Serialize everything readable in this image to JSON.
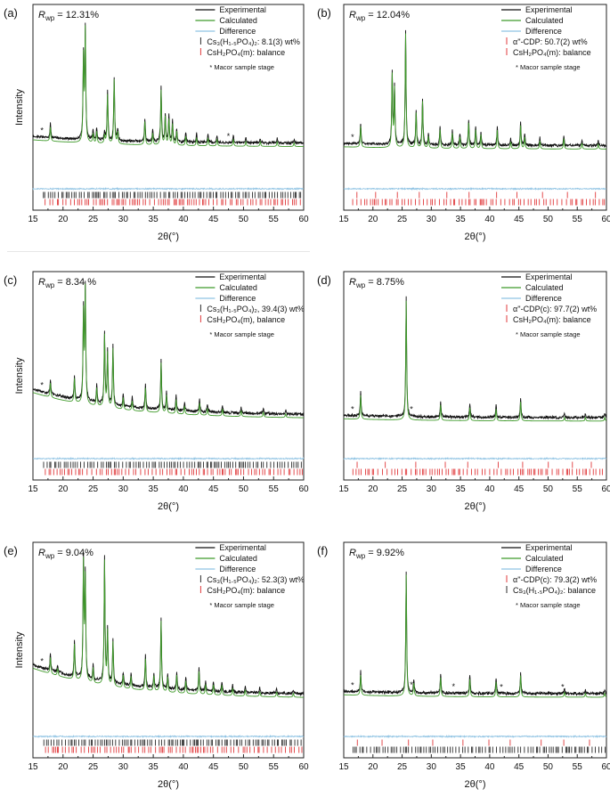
{
  "figure": {
    "description_panels": 6
  },
  "colors": {
    "experimental": "#111111",
    "calculated": "#3f9a2a",
    "difference": "#8fc3e3",
    "tick_black": "#2b2b2b",
    "tick_red": "#e0393b"
  },
  "chart_data": [
    {
      "panel": "(a)",
      "type": "line",
      "rwp_label": "R",
      "rwp_sub": "wp",
      "rwp_value": " = 12.31%",
      "xlabel": "2θ(°)",
      "ylabel": "Intensity",
      "xlim": [
        15,
        60
      ],
      "xticks": [
        15,
        20,
        25,
        30,
        35,
        40,
        45,
        50,
        55,
        60
      ],
      "legend": [
        "Experimental",
        "Calculated",
        "Difference"
      ],
      "phases": [
        {
          "label": "Cs₃(H₁.₅PO₄)₂: 8.1(3) wt%",
          "color": "black",
          "kind": "cs3"
        },
        {
          "label": "CsH₂PO₄(m): balance",
          "color": "red",
          "kind": "cdp"
        }
      ],
      "note": "* Macor sample stage",
      "macor_peaks": [
        16.5,
        47.5
      ],
      "peaks": [
        {
          "x": 17.9,
          "h": 0.12
        },
        {
          "x": 23.4,
          "h": 0.72
        },
        {
          "x": 23.7,
          "h": 0.95
        },
        {
          "x": 25.0,
          "h": 0.08
        },
        {
          "x": 25.6,
          "h": 0.1
        },
        {
          "x": 26.9,
          "h": 0.07
        },
        {
          "x": 27.4,
          "h": 0.42
        },
        {
          "x": 28.5,
          "h": 0.55
        },
        {
          "x": 29.1,
          "h": 0.1
        },
        {
          "x": 33.6,
          "h": 0.2
        },
        {
          "x": 34.9,
          "h": 0.1
        },
        {
          "x": 36.3,
          "h": 0.47
        },
        {
          "x": 37.0,
          "h": 0.24
        },
        {
          "x": 37.6,
          "h": 0.22
        },
        {
          "x": 38.2,
          "h": 0.18
        },
        {
          "x": 38.9,
          "h": 0.12
        },
        {
          "x": 40.4,
          "h": 0.08
        },
        {
          "x": 42.2,
          "h": 0.07
        },
        {
          "x": 44.1,
          "h": 0.07
        },
        {
          "x": 45.6,
          "h": 0.06
        },
        {
          "x": 48.3,
          "h": 0.06
        },
        {
          "x": 50.4,
          "h": 0.04
        },
        {
          "x": 52.8,
          "h": 0.04
        },
        {
          "x": 55.6,
          "h": 0.04
        },
        {
          "x": 58.4,
          "h": 0.03
        }
      ],
      "background": {
        "start": 0.16,
        "end": 0.1
      }
    },
    {
      "panel": "(b)",
      "type": "line",
      "rwp_label": "R",
      "rwp_sub": "wp",
      "rwp_value": " = 12.04%",
      "xlabel": "2θ(°)",
      "ylabel": "",
      "xlim": [
        15,
        60
      ],
      "xticks": [
        15,
        20,
        25,
        30,
        35,
        40,
        45,
        50,
        55,
        60
      ],
      "legend": [
        "Experimental",
        "Calculated",
        "Difference"
      ],
      "phases": [
        {
          "label": "α''-CDP: 50.7(2) wt%",
          "color": "red",
          "kind": "alpha"
        },
        {
          "label": "CsH₂PO₄(m): balance",
          "color": "red",
          "kind": "cdp"
        }
      ],
      "note": "* Macor sample stage",
      "macor_peaks": [
        16.5
      ],
      "peaks": [
        {
          "x": 17.9,
          "h": 0.18
        },
        {
          "x": 23.3,
          "h": 0.62
        },
        {
          "x": 23.7,
          "h": 0.5
        },
        {
          "x": 25.6,
          "h": 0.98
        },
        {
          "x": 27.4,
          "h": 0.3
        },
        {
          "x": 28.5,
          "h": 0.4
        },
        {
          "x": 29.5,
          "h": 0.1
        },
        {
          "x": 31.5,
          "h": 0.16
        },
        {
          "x": 33.6,
          "h": 0.13
        },
        {
          "x": 34.9,
          "h": 0.1
        },
        {
          "x": 36.4,
          "h": 0.22
        },
        {
          "x": 37.6,
          "h": 0.16
        },
        {
          "x": 38.5,
          "h": 0.12
        },
        {
          "x": 41.3,
          "h": 0.16
        },
        {
          "x": 43.6,
          "h": 0.06
        },
        {
          "x": 45.3,
          "h": 0.2
        },
        {
          "x": 46.0,
          "h": 0.1
        },
        {
          "x": 48.6,
          "h": 0.07
        },
        {
          "x": 52.7,
          "h": 0.09
        },
        {
          "x": 55.8,
          "h": 0.05
        },
        {
          "x": 58.6,
          "h": 0.04
        }
      ],
      "background": {
        "start": 0.1,
        "end": 0.08
      }
    },
    {
      "panel": "(c)",
      "type": "line",
      "rwp_label": "R",
      "rwp_sub": "wp",
      "rwp_value": " = 8.34 %",
      "xlabel": "2θ(°)",
      "ylabel": "Intensity",
      "xlim": [
        15,
        60
      ],
      "xticks": [
        15,
        20,
        25,
        30,
        35,
        40,
        45,
        50,
        55,
        60
      ],
      "legend": [
        "Experimental",
        "Calculated",
        "Difference"
      ],
      "phases": [
        {
          "label": "Cs₃(H₁.₅PO₄)₂, 39.4(3) wt%",
          "color": "black",
          "kind": "cs3"
        },
        {
          "label": "CsH₂PO₄(m), balance",
          "color": "red",
          "kind": "cdp"
        }
      ],
      "note": "* Macor sample stage",
      "macor_peaks": [
        16.5
      ],
      "peaks": [
        {
          "x": 17.9,
          "h": 0.12
        },
        {
          "x": 21.9,
          "h": 0.2
        },
        {
          "x": 23.4,
          "h": 0.75
        },
        {
          "x": 23.7,
          "h": 0.95
        },
        {
          "x": 25.6,
          "h": 0.15
        },
        {
          "x": 26.9,
          "h": 0.6
        },
        {
          "x": 27.4,
          "h": 0.45
        },
        {
          "x": 28.3,
          "h": 0.5
        },
        {
          "x": 30.0,
          "h": 0.1
        },
        {
          "x": 31.5,
          "h": 0.08
        },
        {
          "x": 33.7,
          "h": 0.2
        },
        {
          "x": 36.3,
          "h": 0.42
        },
        {
          "x": 37.2,
          "h": 0.15
        },
        {
          "x": 38.8,
          "h": 0.12
        },
        {
          "x": 40.2,
          "h": 0.07
        },
        {
          "x": 42.7,
          "h": 0.1
        },
        {
          "x": 44.0,
          "h": 0.06
        },
        {
          "x": 46.5,
          "h": 0.06
        },
        {
          "x": 49.6,
          "h": 0.05
        },
        {
          "x": 53.3,
          "h": 0.04
        },
        {
          "x": 57.0,
          "h": 0.03
        }
      ],
      "background": {
        "start": 0.3,
        "end": 0.08
      }
    },
    {
      "panel": "(d)",
      "type": "line",
      "rwp_label": "R",
      "rwp_sub": "wp",
      "rwp_value": " = 8.75%",
      "xlabel": "2θ(°)",
      "ylabel": "",
      "xlim": [
        15,
        60
      ],
      "xticks": [
        15,
        20,
        25,
        30,
        35,
        40,
        45,
        50,
        55,
        60
      ],
      "legend": [
        "Experimental",
        "Calculated",
        "Difference"
      ],
      "phases": [
        {
          "label": "α''-CDP(c): 97.7(2) wt%",
          "color": "red",
          "kind": "alpha"
        },
        {
          "label": "CsH₂PO₄(m): balance",
          "color": "red",
          "kind": "cdp"
        }
      ],
      "note": "* Macor sample stage",
      "macor_peaks": [
        16.5,
        26.6
      ],
      "peaks": [
        {
          "x": 17.9,
          "h": 0.2
        },
        {
          "x": 25.7,
          "h": 1.0
        },
        {
          "x": 31.6,
          "h": 0.13
        },
        {
          "x": 36.6,
          "h": 0.11
        },
        {
          "x": 41.1,
          "h": 0.1
        },
        {
          "x": 45.3,
          "h": 0.16
        },
        {
          "x": 52.8,
          "h": 0.03
        },
        {
          "x": 56.4,
          "h": 0.03
        },
        {
          "x": 59.7,
          "h": 0.03
        }
      ],
      "background": {
        "start": 0.08,
        "end": 0.06
      }
    },
    {
      "panel": "(e)",
      "type": "line",
      "rwp_label": "R",
      "rwp_sub": "wp",
      "rwp_value": " = 9.04%",
      "xlabel": "2θ(°)",
      "ylabel": "Intensity",
      "xlim": [
        15,
        60
      ],
      "xticks": [
        15,
        20,
        25,
        30,
        35,
        40,
        45,
        50,
        55,
        60
      ],
      "legend": [
        "Experimental",
        "Calculated",
        "Difference"
      ],
      "phases": [
        {
          "label": "Cs₃(H₁.₅PO₄)₂: 52.3(3) wt%",
          "color": "black",
          "kind": "cs3"
        },
        {
          "label": "CsH₂PO₄(m): balance",
          "color": "red",
          "kind": "cdp"
        }
      ],
      "note": "* Macor sample stage",
      "macor_peaks": [
        16.5
      ],
      "peaks": [
        {
          "x": 17.9,
          "h": 0.13
        },
        {
          "x": 19.1,
          "h": 0.06
        },
        {
          "x": 21.9,
          "h": 0.28
        },
        {
          "x": 23.4,
          "h": 0.92
        },
        {
          "x": 23.7,
          "h": 0.8
        },
        {
          "x": 25.0,
          "h": 0.12
        },
        {
          "x": 26.9,
          "h": 0.98
        },
        {
          "x": 27.4,
          "h": 0.42
        },
        {
          "x": 28.3,
          "h": 0.35
        },
        {
          "x": 30.0,
          "h": 0.1
        },
        {
          "x": 31.3,
          "h": 0.1
        },
        {
          "x": 33.7,
          "h": 0.25
        },
        {
          "x": 35.1,
          "h": 0.12
        },
        {
          "x": 36.3,
          "h": 0.56
        },
        {
          "x": 37.4,
          "h": 0.12
        },
        {
          "x": 38.9,
          "h": 0.14
        },
        {
          "x": 40.4,
          "h": 0.1
        },
        {
          "x": 42.6,
          "h": 0.18
        },
        {
          "x": 43.7,
          "h": 0.08
        },
        {
          "x": 45.0,
          "h": 0.08
        },
        {
          "x": 46.4,
          "h": 0.08
        },
        {
          "x": 48.2,
          "h": 0.06
        },
        {
          "x": 50.3,
          "h": 0.05
        },
        {
          "x": 52.7,
          "h": 0.04
        },
        {
          "x": 55.5,
          "h": 0.04
        },
        {
          "x": 58.3,
          "h": 0.03
        }
      ],
      "background": {
        "start": 0.3,
        "end": 0.06
      }
    },
    {
      "panel": "(f)",
      "type": "line",
      "rwp_label": "R",
      "rwp_sub": "wp",
      "rwp_value": " = 9.92%",
      "xlabel": "2θ(°)",
      "ylabel": "",
      "xlim": [
        15,
        60
      ],
      "xticks": [
        15,
        20,
        25,
        30,
        35,
        40,
        45,
        50,
        55,
        60
      ],
      "legend": [
        "Experimental",
        "Calculated",
        "Difference"
      ],
      "phases": [
        {
          "label": "α''-CDP(c): 79.3(2) wt%",
          "color": "red",
          "kind": "alpha"
        },
        {
          "label": "Cs₃(H₁.₅PO₄)₂: balance",
          "color": "black",
          "kind": "cs3"
        }
      ],
      "note": "* Macor sample stage",
      "macor_peaks": [
        16.5,
        26.6,
        33.8,
        42.0,
        52.5
      ],
      "peaks": [
        {
          "x": 17.9,
          "h": 0.16
        },
        {
          "x": 25.7,
          "h": 0.96
        },
        {
          "x": 27.0,
          "h": 0.1
        },
        {
          "x": 31.6,
          "h": 0.15
        },
        {
          "x": 36.6,
          "h": 0.14
        },
        {
          "x": 41.1,
          "h": 0.12
        },
        {
          "x": 45.3,
          "h": 0.17
        },
        {
          "x": 52.8,
          "h": 0.04
        },
        {
          "x": 56.4,
          "h": 0.03
        },
        {
          "x": 59.7,
          "h": 0.03
        }
      ],
      "background": {
        "start": 0.09,
        "end": 0.07
      }
    }
  ]
}
